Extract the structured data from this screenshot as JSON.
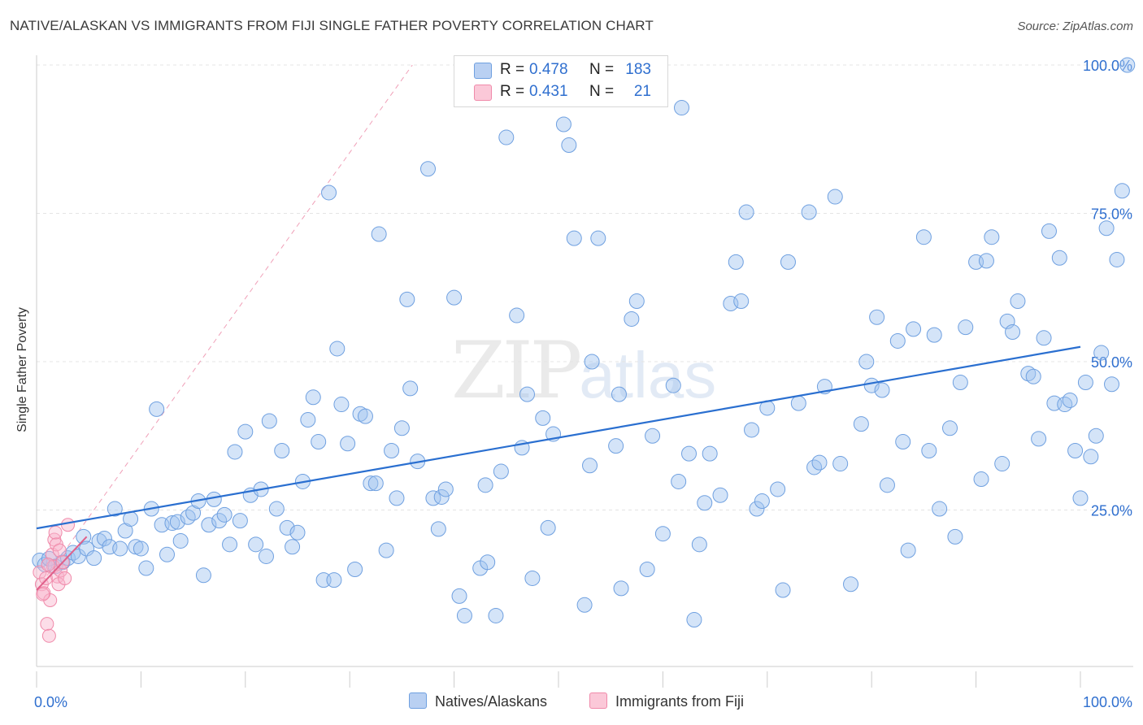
{
  "chart_data": {
    "type": "scatter",
    "title": "NATIVE/ALASKAN VS IMMIGRANTS FROM FIJI SINGLE FATHER POVERTY CORRELATION CHART",
    "source": "Source: ZipAtlas.com",
    "ylabel": "Single Father Poverty",
    "xlabel": "",
    "xlim": [
      0,
      100
    ],
    "ylim": [
      0,
      100
    ],
    "x_tick_labels": [
      "0.0%",
      "100.0%"
    ],
    "y_tick_labels": [
      "25.0%",
      "50.0%",
      "75.0%",
      "100.0%"
    ],
    "y_tick_values": [
      25,
      50,
      75,
      100
    ],
    "grid": true,
    "watermark": {
      "zip": "ZIP",
      "atlas": "atlas"
    },
    "legend": {
      "placement": "top-center",
      "r_label": "R =",
      "n_label": "N =",
      "entries": [
        {
          "name": "Natives/Alaskans",
          "r": "0.478",
          "n": "183",
          "color": "#6fa0e0"
        },
        {
          "name": "Immigrants from Fiji",
          "r": "0.431",
          "n": "21",
          "color": "#f08aaa"
        }
      ]
    },
    "series": [
      {
        "name": "Natives/Alaskans",
        "color": "#6fa0e0",
        "trend": [
          [
            0,
            21.9
          ],
          [
            100,
            52.5
          ]
        ],
        "points": [
          [
            0.3,
            16.5
          ],
          [
            0.8,
            15.8
          ],
          [
            1.2,
            16.8
          ],
          [
            1.8,
            15.5
          ],
          [
            2.5,
            16.2
          ],
          [
            3.0,
            16.9
          ],
          [
            3.5,
            17.8
          ],
          [
            4.0,
            17.2
          ],
          [
            4.5,
            20.5
          ],
          [
            4.8,
            18.5
          ],
          [
            5.5,
            16.9
          ],
          [
            6.0,
            19.8
          ],
          [
            6.5,
            20.2
          ],
          [
            7.0,
            18.8
          ],
          [
            7.5,
            25.2
          ],
          [
            8.0,
            18.5
          ],
          [
            8.5,
            21.5
          ],
          [
            9.0,
            23.5
          ],
          [
            9.5,
            18.8
          ],
          [
            10.0,
            18.5
          ],
          [
            10.5,
            15.2
          ],
          [
            11.0,
            25.2
          ],
          [
            11.5,
            42.0
          ],
          [
            12.0,
            22.5
          ],
          [
            12.5,
            17.5
          ],
          [
            13.0,
            22.8
          ],
          [
            13.5,
            23.0
          ],
          [
            13.8,
            19.8
          ],
          [
            14.5,
            23.8
          ],
          [
            15.0,
            24.5
          ],
          [
            15.5,
            26.5
          ],
          [
            16.0,
            14.0
          ],
          [
            16.5,
            22.5
          ],
          [
            17.0,
            26.8
          ],
          [
            17.5,
            23.2
          ],
          [
            18.0,
            24.2
          ],
          [
            18.5,
            19.2
          ],
          [
            19.0,
            34.8
          ],
          [
            19.5,
            23.2
          ],
          [
            20.0,
            38.2
          ],
          [
            20.5,
            27.5
          ],
          [
            21.0,
            19.2
          ],
          [
            21.5,
            28.5
          ],
          [
            22.0,
            17.2
          ],
          [
            22.3,
            40.0
          ],
          [
            23.0,
            25.2
          ],
          [
            23.5,
            35.0
          ],
          [
            24.0,
            22.0
          ],
          [
            24.5,
            18.8
          ],
          [
            25.0,
            21.2
          ],
          [
            25.5,
            29.8
          ],
          [
            26.0,
            40.2
          ],
          [
            26.5,
            44.0
          ],
          [
            27.0,
            36.5
          ],
          [
            27.5,
            13.2
          ],
          [
            28.0,
            78.5
          ],
          [
            28.5,
            13.2
          ],
          [
            28.8,
            52.2
          ],
          [
            29.2,
            42.8
          ],
          [
            29.8,
            36.2
          ],
          [
            30.5,
            15.0
          ],
          [
            31.0,
            41.2
          ],
          [
            31.5,
            40.8
          ],
          [
            32.0,
            29.5
          ],
          [
            32.5,
            29.5
          ],
          [
            32.8,
            71.5
          ],
          [
            33.5,
            18.2
          ],
          [
            34.0,
            35.0
          ],
          [
            34.5,
            27.0
          ],
          [
            35.0,
            38.8
          ],
          [
            35.5,
            60.5
          ],
          [
            35.8,
            45.5
          ],
          [
            36.5,
            33.2
          ],
          [
            37.5,
            82.5
          ],
          [
            38.0,
            27.0
          ],
          [
            38.5,
            21.8
          ],
          [
            38.8,
            27.2
          ],
          [
            39.2,
            28.5
          ],
          [
            40.0,
            60.8
          ],
          [
            40.5,
            10.5
          ],
          [
            41.0,
            7.2
          ],
          [
            42.5,
            15.2
          ],
          [
            43.0,
            29.2
          ],
          [
            43.2,
            16.2
          ],
          [
            44.0,
            7.2
          ],
          [
            44.5,
            31.5
          ],
          [
            45.0,
            87.8
          ],
          [
            46.0,
            57.8
          ],
          [
            46.5,
            35.5
          ],
          [
            47.0,
            44.5
          ],
          [
            47.5,
            13.5
          ],
          [
            48.5,
            40.5
          ],
          [
            49.0,
            22.0
          ],
          [
            49.5,
            37.8
          ],
          [
            50.5,
            90.0
          ],
          [
            51.0,
            86.5
          ],
          [
            51.5,
            70.8
          ],
          [
            52.5,
            9.0
          ],
          [
            53.0,
            32.5
          ],
          [
            53.2,
            50.0
          ],
          [
            53.8,
            70.8
          ],
          [
            55.5,
            35.8
          ],
          [
            55.8,
            44.5
          ],
          [
            56.0,
            11.8
          ],
          [
            57.0,
            57.2
          ],
          [
            57.5,
            60.2
          ],
          [
            58.5,
            15.0
          ],
          [
            59.0,
            37.5
          ],
          [
            60.0,
            21.0
          ],
          [
            61.0,
            46.0
          ],
          [
            61.5,
            29.8
          ],
          [
            61.8,
            92.8
          ],
          [
            62.5,
            34.5
          ],
          [
            63.0,
            6.5
          ],
          [
            63.5,
            19.2
          ],
          [
            64.0,
            26.2
          ],
          [
            64.5,
            34.5
          ],
          [
            65.5,
            27.5
          ],
          [
            66.5,
            59.8
          ],
          [
            67.0,
            66.8
          ],
          [
            67.5,
            60.2
          ],
          [
            68.0,
            75.2
          ],
          [
            68.5,
            38.5
          ],
          [
            69.0,
            25.2
          ],
          [
            69.5,
            26.5
          ],
          [
            70.0,
            42.2
          ],
          [
            71.0,
            28.5
          ],
          [
            71.5,
            11.5
          ],
          [
            72.0,
            66.8
          ],
          [
            73.0,
            43.0
          ],
          [
            74.0,
            75.2
          ],
          [
            74.5,
            32.2
          ],
          [
            75.0,
            33.0
          ],
          [
            75.5,
            45.8
          ],
          [
            76.5,
            77.8
          ],
          [
            77.0,
            32.8
          ],
          [
            78.0,
            12.5
          ],
          [
            79.0,
            39.5
          ],
          [
            79.5,
            50.0
          ],
          [
            80.0,
            46.0
          ],
          [
            80.5,
            57.5
          ],
          [
            81.0,
            45.2
          ],
          [
            81.5,
            29.2
          ],
          [
            82.5,
            53.5
          ],
          [
            83.0,
            36.5
          ],
          [
            83.5,
            18.2
          ],
          [
            84.0,
            55.5
          ],
          [
            85.0,
            71.0
          ],
          [
            85.5,
            35.0
          ],
          [
            86.0,
            54.5
          ],
          [
            86.5,
            25.2
          ],
          [
            87.5,
            38.8
          ],
          [
            88.0,
            20.5
          ],
          [
            88.5,
            46.5
          ],
          [
            89.0,
            55.8
          ],
          [
            90.0,
            66.8
          ],
          [
            90.5,
            30.2
          ],
          [
            91.0,
            67.0
          ],
          [
            91.5,
            71.0
          ],
          [
            92.5,
            32.8
          ],
          [
            93.0,
            56.8
          ],
          [
            93.5,
            55.0
          ],
          [
            94.0,
            60.2
          ],
          [
            95.0,
            48.0
          ],
          [
            95.5,
            47.5
          ],
          [
            96.0,
            37.0
          ],
          [
            96.5,
            54.0
          ],
          [
            97.0,
            72.0
          ],
          [
            97.5,
            43.0
          ],
          [
            98.0,
            67.5
          ],
          [
            98.5,
            42.8
          ],
          [
            99.0,
            43.5
          ],
          [
            99.5,
            35.0
          ],
          [
            100.0,
            27.0
          ],
          [
            100.5,
            46.5
          ],
          [
            101.0,
            34.0
          ],
          [
            101.5,
            37.5
          ],
          [
            102.0,
            51.5
          ],
          [
            102.5,
            72.5
          ],
          [
            103.0,
            46.2
          ],
          [
            103.5,
            67.2
          ],
          [
            104.0,
            78.8
          ],
          [
            104.5,
            100.0
          ]
        ]
      },
      {
        "name": "Immigrants from Fiji",
        "color": "#f08aaa",
        "trend": [
          [
            0,
            11.5
          ],
          [
            4.8,
            20.5
          ]
        ],
        "trend_extended": [
          [
            0,
            11.5
          ],
          [
            36,
            100
          ]
        ],
        "points": [
          [
            0.3,
            14.5
          ],
          [
            0.5,
            12.5
          ],
          [
            0.7,
            11.0
          ],
          [
            0.9,
            13.5
          ],
          [
            1.0,
            5.8
          ],
          [
            1.2,
            3.8
          ],
          [
            1.3,
            9.8
          ],
          [
            1.5,
            17.5
          ],
          [
            1.6,
            15.5
          ],
          [
            1.7,
            20.0
          ],
          [
            1.8,
            21.2
          ],
          [
            1.9,
            19.2
          ],
          [
            2.0,
            13.8
          ],
          [
            2.1,
            12.5
          ],
          [
            2.2,
            18.2
          ],
          [
            2.3,
            14.8
          ],
          [
            2.5,
            16.2
          ],
          [
            2.7,
            13.5
          ],
          [
            3.0,
            22.5
          ],
          [
            1.1,
            15.8
          ],
          [
            0.6,
            10.8
          ]
        ]
      }
    ]
  }
}
